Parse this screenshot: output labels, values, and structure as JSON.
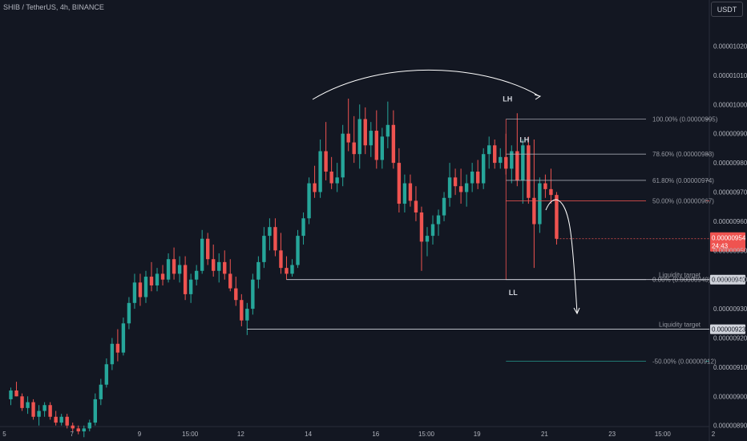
{
  "header": {
    "symbol_line": "SHIB / TetherUS, 4h, BINANCE",
    "quote_currency": "USDT"
  },
  "chart_data": {
    "type": "candlestick",
    "y_ticks": [
      "0.00001020",
      "0.00001010",
      "0.00001000",
      "0.00000990",
      "0.00000980",
      "0.00000970",
      "0.00000960",
      "0.00000950",
      "0.00000940",
      "0.00000930",
      "0.00000920",
      "0.00000910",
      "0.00000900",
      "0.00000890"
    ],
    "y_tick_values": [
      1020,
      1010,
      1000,
      990,
      980,
      970,
      960,
      950,
      940,
      930,
      920,
      910,
      900,
      890
    ],
    "x_ticks": [
      {
        "label": "5",
        "i": 0
      },
      {
        "label": "7",
        "i": 12
      },
      {
        "label": "9",
        "i": 24
      },
      {
        "label": "15:00",
        "i": 33
      },
      {
        "label": "12",
        "i": 42
      },
      {
        "label": "14",
        "i": 54
      },
      {
        "label": "16",
        "i": 66
      },
      {
        "label": "15:00",
        "i": 75
      },
      {
        "label": "19",
        "i": 84
      },
      {
        "label": "21",
        "i": 96
      },
      {
        "label": "23",
        "i": 108
      },
      {
        "label": "15:00",
        "i": 117
      },
      {
        "label": "2",
        "i": 126
      }
    ],
    "candles": [
      [
        899,
        903,
        897,
        902
      ],
      [
        902,
        905,
        900,
        900
      ],
      [
        900,
        901,
        895,
        896
      ],
      [
        896,
        900,
        894,
        898
      ],
      [
        898,
        899,
        892,
        893
      ],
      [
        893,
        897,
        890,
        895
      ],
      [
        895,
        898,
        893,
        897
      ],
      [
        897,
        898,
        892,
        893
      ],
      [
        893,
        895,
        890,
        891
      ],
      [
        891,
        894,
        890,
        893
      ],
      [
        893,
        894,
        889,
        890
      ],
      [
        890,
        891,
        888,
        889
      ],
      [
        889,
        890,
        887,
        888
      ],
      [
        888,
        890,
        886,
        889
      ],
      [
        889,
        892,
        888,
        891
      ],
      [
        891,
        901,
        890,
        899
      ],
      [
        899,
        906,
        897,
        904
      ],
      [
        904,
        913,
        903,
        911
      ],
      [
        911,
        920,
        909,
        918
      ],
      [
        918,
        923,
        912,
        915
      ],
      [
        915,
        927,
        914,
        925
      ],
      [
        925,
        934,
        923,
        932
      ],
      [
        932,
        942,
        930,
        939
      ],
      [
        939,
        942,
        931,
        934
      ],
      [
        934,
        943,
        932,
        941
      ],
      [
        941,
        946,
        936,
        938
      ],
      [
        938,
        944,
        936,
        942
      ],
      [
        942,
        945,
        938,
        940
      ],
      [
        940,
        949,
        939,
        947
      ],
      [
        947,
        951,
        940,
        942
      ],
      [
        942,
        948,
        939,
        945
      ],
      [
        945,
        948,
        933,
        935
      ],
      [
        935,
        942,
        932,
        940
      ],
      [
        940,
        945,
        938,
        943
      ],
      [
        943,
        957,
        942,
        954
      ],
      [
        954,
        956,
        945,
        947
      ],
      [
        947,
        952,
        941,
        943
      ],
      [
        943,
        949,
        939,
        946
      ],
      [
        946,
        950,
        940,
        942
      ],
      [
        942,
        947,
        936,
        937
      ],
      [
        937,
        941,
        931,
        933
      ],
      [
        933,
        935,
        924,
        926
      ],
      [
        926,
        932,
        921,
        930
      ],
      [
        930,
        942,
        928,
        940
      ],
      [
        940,
        948,
        937,
        946
      ],
      [
        946,
        958,
        944,
        955
      ],
      [
        955,
        961,
        950,
        958
      ],
      [
        958,
        961,
        948,
        950
      ],
      [
        950,
        956,
        942,
        944
      ],
      [
        944,
        948,
        940,
        942
      ],
      [
        942,
        947,
        941,
        945
      ],
      [
        945,
        957,
        944,
        955
      ],
      [
        955,
        963,
        952,
        961
      ],
      [
        961,
        975,
        959,
        973
      ],
      [
        973,
        979,
        968,
        970
      ],
      [
        970,
        988,
        968,
        984
      ],
      [
        984,
        994,
        974,
        977
      ],
      [
        977,
        982,
        971,
        973
      ],
      [
        973,
        980,
        970,
        975
      ],
      [
        975,
        993,
        972,
        990
      ],
      [
        990,
        1002,
        984,
        987
      ],
      [
        987,
        996,
        980,
        983
      ],
      [
        983,
        1000,
        978,
        995
      ],
      [
        995,
        999,
        983,
        986
      ],
      [
        986,
        994,
        982,
        991
      ],
      [
        991,
        998,
        978,
        981
      ],
      [
        981,
        992,
        978,
        989
      ],
      [
        989,
        1001,
        985,
        993
      ],
      [
        993,
        998,
        978,
        980
      ],
      [
        980,
        985,
        963,
        966
      ],
      [
        966,
        976,
        963,
        973
      ],
      [
        973,
        976,
        965,
        967
      ],
      [
        967,
        972,
        960,
        963
      ],
      [
        963,
        965,
        943,
        953
      ],
      [
        953,
        958,
        948,
        955
      ],
      [
        955,
        962,
        952,
        959
      ],
      [
        959,
        964,
        955,
        962
      ],
      [
        962,
        970,
        960,
        968
      ],
      [
        968,
        980,
        965,
        975
      ],
      [
        975,
        978,
        969,
        972
      ],
      [
        972,
        978,
        966,
        970
      ],
      [
        970,
        976,
        965,
        973
      ],
      [
        973,
        980,
        970,
        977
      ],
      [
        977,
        981,
        971,
        973
      ],
      [
        973,
        985,
        971,
        983
      ],
      [
        983,
        989,
        978,
        986
      ],
      [
        986,
        988,
        978,
        980
      ],
      [
        980,
        985,
        978,
        982
      ],
      [
        982,
        990,
        976,
        978
      ],
      [
        978,
        986,
        973,
        984
      ],
      [
        984,
        997,
        972,
        974
      ],
      [
        974,
        988,
        966,
        986
      ],
      [
        986,
        989,
        966,
        968
      ],
      [
        968,
        988,
        944,
        959
      ],
      [
        959,
        975,
        956,
        973
      ],
      [
        973,
        976,
        968,
        971
      ],
      [
        971,
        978,
        966,
        969
      ],
      [
        969,
        970,
        952,
        954
      ]
    ],
    "fib_levels": [
      {
        "label": "100.00% (0.00000995)",
        "value": 995
      },
      {
        "label": "78.60% (0.00000983)",
        "value": 983
      },
      {
        "label": "61.80% (0.00000974)",
        "value": 974
      },
      {
        "label": "50.00% (0.00000967)",
        "value": 967
      },
      {
        "label": "0.00% (0.00000940)",
        "value": 940
      },
      {
        "label": "-50.00% (0.00000912)",
        "value": 912
      }
    ],
    "liquidity_targets": [
      {
        "label": "Liquidity target",
        "value": 940,
        "price_label": "0.00000940"
      },
      {
        "label": "Liquidity target",
        "value": 923,
        "price_label": "0.00000923"
      }
    ],
    "pivot_labels": [
      {
        "text": "LH",
        "i": 88,
        "value": 1000
      },
      {
        "text": "LH",
        "i": 91,
        "value": 986
      },
      {
        "text": "LL",
        "i": 89,
        "value": 938
      }
    ],
    "current_price": {
      "value": 954,
      "label": "0.00000954",
      "countdown": "24:43"
    },
    "colors": {
      "up": "#26a69a",
      "down": "#ef5350",
      "background": "#131722",
      "level_line": "#b2b5be",
      "fib50": "#ef5350",
      "fib_ext": "#26a69a"
    }
  }
}
